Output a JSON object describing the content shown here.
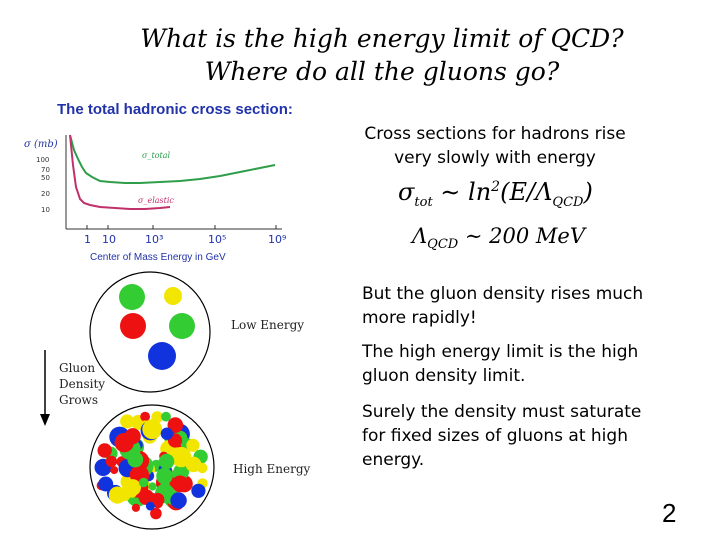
{
  "slide": {
    "title_line1": "What is the high energy limit of QCD?",
    "title_line2": "Where do all the gluons go?",
    "page_number": "2"
  },
  "figure": {
    "chart_title": "The total hadronic cross section:",
    "y_axis_label": "σ (mb)",
    "y_ticks": [
      "100",
      "70",
      "50",
      "20",
      "10"
    ],
    "x_ticks": [
      "1",
      "10",
      "10³",
      "10⁵",
      "10⁹"
    ],
    "x_axis_label": "Center of Mass Energy in GeV",
    "label_total": "σ_total",
    "label_elastic": "σ_elastic",
    "low_energy_label": "Low Energy",
    "high_energy_label": "High Energy",
    "gluon_line1": "Gluon",
    "gluon_line2": "Density",
    "gluon_line3": "Grows"
  },
  "text": {
    "para1": "Cross sections for hadrons rise very slowly with energy",
    "eq1_sigma": "σ",
    "eq1_sub": "tot",
    "eq1_mid": " ∼ ln",
    "eq1_sup": "2",
    "eq1_rest": "(E/Λ",
    "eq1_sub2": "QCD",
    "eq1_end": ")",
    "eq2_lambda": "Λ",
    "eq2_sub": "QCD",
    "eq2_rest": " ∼ 200 MeV",
    "para2": "But the gluon density rises much more rapidly!",
    "para3": "The high energy limit is the high gluon density limit.",
    "para4": "Surely the density must saturate for fixed sizes of gluons at high energy."
  },
  "colors": {
    "total_curve": "#2e9e4a",
    "elastic_curve": "#c0306a",
    "title_blue": "#2233aa"
  }
}
